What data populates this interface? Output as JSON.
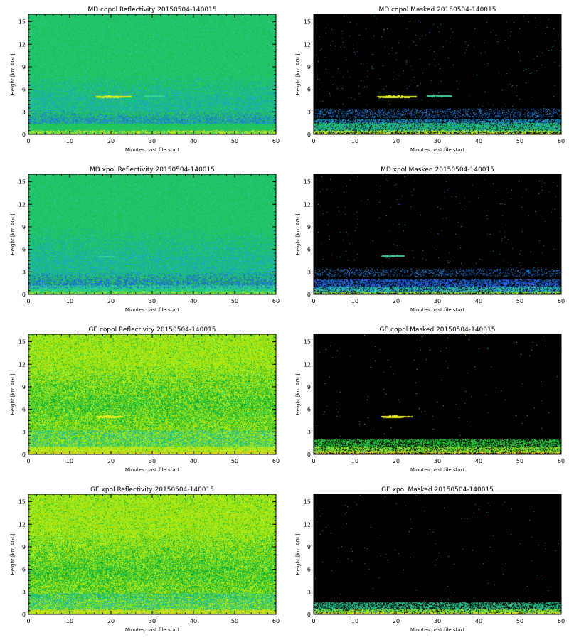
{
  "figure": {
    "x_tick_labels": [
      "0",
      "10",
      "20",
      "30",
      "40",
      "50",
      "60"
    ],
    "y_tick_labels": [
      "0",
      "3",
      "6",
      "9",
      "12",
      "15"
    ],
    "xlabel": "Minutes past file start",
    "ylabel": "Height [km AGL]"
  },
  "chart_data": [
    {
      "type": "heatmap",
      "title": "MD copol Reflectivity 20150504-140015",
      "xlabel": "Minutes past file start",
      "ylabel": "Height [km AGL]",
      "xlim": [
        0,
        60
      ],
      "ylim": [
        0,
        16
      ],
      "x_ticks": [
        0,
        10,
        20,
        30,
        40,
        50,
        60
      ],
      "y_ticks": [
        0,
        3,
        6,
        9,
        12,
        15
      ],
      "background": "#22c466",
      "noise": [
        "#1fbf5a",
        "#26c47a",
        "#2fd0a0",
        "#19b850"
      ],
      "noise_density": 0.25,
      "bands": [
        {
          "y0": 3,
          "y1": 8,
          "color": "#1aa6c8",
          "max_alpha": 0.55,
          "grade": "down"
        },
        {
          "y0": 1.4,
          "y1": 3.2,
          "color": "#1e78d8",
          "max_alpha": 0.8,
          "grade": "down"
        },
        {
          "y0": 0.3,
          "y1": 1.4,
          "color": "#23c45a",
          "max_alpha": 1.0,
          "grade": "flat"
        },
        {
          "y0": 0,
          "y1": 0.5,
          "color": "#c8e61e",
          "max_alpha": 0.9,
          "grade": "flat"
        }
      ],
      "layers": [
        {
          "x0": 16.5,
          "x1": 25,
          "y": 5.0,
          "h": 0.3,
          "color": "#e6f01e"
        },
        {
          "x0": 28,
          "x1": 33,
          "y": 5.1,
          "h": 0.18,
          "color": "#3cd69a"
        }
      ]
    },
    {
      "type": "heatmap",
      "title": "MD copol Masked 20150504-140015",
      "xlabel": "Minutes past file start",
      "ylabel": "Height [km AGL]",
      "xlim": [
        0,
        60
      ],
      "ylim": [
        0,
        16
      ],
      "x_ticks": [
        0,
        10,
        20,
        30,
        40,
        50,
        60
      ],
      "y_ticks": [
        0,
        3,
        6,
        9,
        12,
        15
      ],
      "background": "#000000",
      "noise": [
        "#1e78d8",
        "#22c466",
        "#2fd0a0"
      ],
      "noise_density": 0.005,
      "bands": [
        {
          "y0": 2.2,
          "y1": 3.4,
          "color": "#1e78d8",
          "max_alpha": 0.35,
          "grade": "flat"
        },
        {
          "y0": 0.3,
          "y1": 2.0,
          "color": "#1a8fc8",
          "max_alpha": 1.0,
          "grade": "flat"
        },
        {
          "y0": 0.3,
          "y1": 1.5,
          "color": "#22c466",
          "max_alpha": 0.9,
          "grade": "flat"
        },
        {
          "y0": 0,
          "y1": 0.5,
          "color": "#c8e61e",
          "max_alpha": 0.9,
          "grade": "flat"
        }
      ],
      "layers": [
        {
          "x0": 15.5,
          "x1": 25,
          "y": 5.0,
          "h": 0.35,
          "color": "#e6f01e"
        },
        {
          "x0": 27.5,
          "x1": 33.5,
          "y": 5.1,
          "h": 0.25,
          "color": "#3cd69a"
        }
      ]
    },
    {
      "type": "heatmap",
      "title": "MD xpol Reflectivity 20150504-140015",
      "xlabel": "Minutes past file start",
      "ylabel": "Height [km AGL]",
      "xlim": [
        0,
        60
      ],
      "ylim": [
        0,
        16
      ],
      "x_ticks": [
        0,
        10,
        20,
        30,
        40,
        50,
        60
      ],
      "y_ticks": [
        0,
        3,
        6,
        9,
        12,
        15
      ],
      "background": "#22c466",
      "noise": [
        "#1fbf5a",
        "#26c47a",
        "#2fd0a0",
        "#19b850"
      ],
      "noise_density": 0.25,
      "bands": [
        {
          "y0": 2.5,
          "y1": 9,
          "color": "#1aa6c8",
          "max_alpha": 0.6,
          "grade": "down"
        },
        {
          "y0": 0.8,
          "y1": 3.0,
          "color": "#1e64d8",
          "max_alpha": 0.85,
          "grade": "down"
        },
        {
          "y0": 0.3,
          "y1": 1.2,
          "color": "#2fd0a0",
          "max_alpha": 0.8,
          "grade": "flat"
        },
        {
          "y0": 0,
          "y1": 0.4,
          "color": "#a8e61e",
          "max_alpha": 0.8,
          "grade": "flat"
        }
      ],
      "layers": [
        {
          "x0": 17,
          "x1": 21,
          "y": 5.0,
          "h": 0.15,
          "color": "#3cd69a"
        }
      ]
    },
    {
      "type": "heatmap",
      "title": "MD xpol Masked 20150504-140015",
      "xlabel": "Minutes past file start",
      "ylabel": "Height [km AGL]",
      "xlim": [
        0,
        60
      ],
      "ylim": [
        0,
        16
      ],
      "x_ticks": [
        0,
        10,
        20,
        30,
        40,
        50,
        60
      ],
      "y_ticks": [
        0,
        3,
        6,
        9,
        12,
        15
      ],
      "background": "#000000",
      "noise": [
        "#1e78d8",
        "#22c466",
        "#2fd0a0"
      ],
      "noise_density": 0.004,
      "bands": [
        {
          "y0": 2.4,
          "y1": 3.4,
          "color": "#1e78d8",
          "max_alpha": 0.3,
          "grade": "flat"
        },
        {
          "y0": 0.2,
          "y1": 2.0,
          "color": "#1e64d8",
          "max_alpha": 1.0,
          "grade": "flat"
        },
        {
          "y0": 0.2,
          "y1": 1.0,
          "color": "#2fd0a0",
          "max_alpha": 0.8,
          "grade": "flat"
        },
        {
          "y0": 0,
          "y1": 0.35,
          "color": "#a8e61e",
          "max_alpha": 0.8,
          "grade": "flat"
        }
      ],
      "layers": [
        {
          "x0": 16.5,
          "x1": 22,
          "y": 5.1,
          "h": 0.25,
          "color": "#3cd69a"
        }
      ]
    },
    {
      "type": "heatmap",
      "title": "GE copol Reflectivity 20150504-140015",
      "xlabel": "Minutes past file start",
      "ylabel": "Height [km AGL]",
      "xlim": [
        0,
        60
      ],
      "ylim": [
        0,
        16
      ],
      "x_ticks": [
        0,
        10,
        20,
        30,
        40,
        50,
        60
      ],
      "y_ticks": [
        0,
        3,
        6,
        9,
        12,
        15
      ],
      "background": "#a8e614",
      "noise": [
        "#22c43c",
        "#c8f01e",
        "#8ee028",
        "#14b432"
      ],
      "noise_density": 0.3,
      "bands": [
        {
          "y0": 3,
          "y1": 12,
          "color": "#10b43c",
          "max_alpha": 0.75,
          "grade": "peak"
        },
        {
          "y0": 1.0,
          "y1": 3.2,
          "color": "#1fbf8c",
          "max_alpha": 0.65,
          "grade": "flat"
        },
        {
          "y0": 0.2,
          "y1": 1.0,
          "color": "#c8e61e",
          "max_alpha": 0.7,
          "grade": "flat"
        },
        {
          "y0": 0,
          "y1": 0.4,
          "color": "#f0c81e",
          "max_alpha": 0.6,
          "grade": "flat"
        }
      ],
      "layers": [
        {
          "x0": 16.5,
          "x1": 23,
          "y": 5.0,
          "h": 0.3,
          "color": "#f0f01e"
        }
      ]
    },
    {
      "type": "heatmap",
      "title": "GE copol Masked 20150504-140015",
      "xlabel": "Minutes past file start",
      "ylabel": "Height [km AGL]",
      "xlim": [
        0,
        60
      ],
      "ylim": [
        0,
        16
      ],
      "x_ticks": [
        0,
        10,
        20,
        30,
        40,
        50,
        60
      ],
      "y_ticks": [
        0,
        3,
        6,
        9,
        12,
        15
      ],
      "background": "#000000",
      "noise": [
        "#22c43c",
        "#a8e614"
      ],
      "noise_density": 0.002,
      "bands": [
        {
          "y0": 0.2,
          "y1": 2.0,
          "color": "#22c43c",
          "max_alpha": 1.0,
          "grade": "flat"
        },
        {
          "y0": 0.2,
          "y1": 1.0,
          "color": "#a8e61e",
          "max_alpha": 0.7,
          "grade": "flat"
        },
        {
          "y0": 0,
          "y1": 0.4,
          "color": "#f0c81e",
          "max_alpha": 0.6,
          "grade": "flat"
        }
      ],
      "layers": [
        {
          "x0": 16.5,
          "x1": 24,
          "y": 5.0,
          "h": 0.3,
          "color": "#f0f01e"
        }
      ]
    },
    {
      "type": "heatmap",
      "title": "GE xpol Reflectivity 20150504-140015",
      "xlabel": "Minutes past file start",
      "ylabel": "Height [km AGL]",
      "xlim": [
        0,
        60
      ],
      "ylim": [
        0,
        16
      ],
      "x_ticks": [
        0,
        10,
        20,
        30,
        40,
        50,
        60
      ],
      "y_ticks": [
        0,
        3,
        6,
        9,
        12,
        15
      ],
      "background": "#a8e614",
      "noise": [
        "#22c43c",
        "#c8f01e",
        "#8ee028",
        "#14b432"
      ],
      "noise_density": 0.3,
      "bands": [
        {
          "y0": 2,
          "y1": 11,
          "color": "#10b43c",
          "max_alpha": 0.8,
          "grade": "peak"
        },
        {
          "y0": 0.6,
          "y1": 2.8,
          "color": "#1fbf8c",
          "max_alpha": 0.75,
          "grade": "flat"
        },
        {
          "y0": 0,
          "y1": 0.6,
          "color": "#e6d21e",
          "max_alpha": 0.6,
          "grade": "flat"
        }
      ],
      "layers": []
    },
    {
      "type": "heatmap",
      "title": "GE xpol Masked 20150504-140015",
      "xlabel": "Minutes past file start",
      "ylabel": "Height [km AGL]",
      "xlim": [
        0,
        60
      ],
      "ylim": [
        0,
        16
      ],
      "x_ticks": [
        0,
        10,
        20,
        30,
        40,
        50,
        60
      ],
      "y_ticks": [
        0,
        3,
        6,
        9,
        12,
        15
      ],
      "background": "#000000",
      "noise": [
        "#1fbf8c",
        "#22c43c"
      ],
      "noise_density": 0.002,
      "bands": [
        {
          "y0": 0.1,
          "y1": 1.6,
          "color": "#1fbf8c",
          "max_alpha": 1.0,
          "grade": "flat"
        },
        {
          "y0": 0,
          "y1": 0.7,
          "color": "#a8e61e",
          "max_alpha": 0.8,
          "grade": "flat"
        },
        {
          "y0": 0,
          "y1": 0.3,
          "color": "#e6d21e",
          "max_alpha": 0.7,
          "grade": "flat"
        }
      ],
      "layers": []
    }
  ]
}
